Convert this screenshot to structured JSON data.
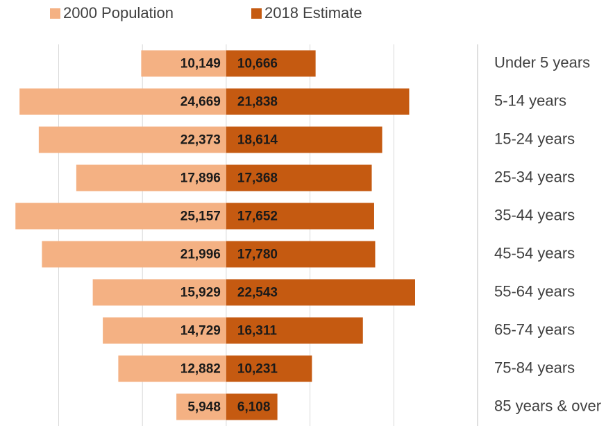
{
  "chart_data": {
    "type": "pyramid",
    "categories": [
      "Under 5 years",
      "5-14 years",
      "15-24 years",
      "25-34 years",
      "35-44 years",
      "45-54 years",
      "55-64 years",
      "65-74 years",
      "75-84 years",
      "85 years & over"
    ],
    "series": [
      {
        "name": "2000 Population",
        "color": "#f4b183",
        "side": "left",
        "values": [
          10149,
          24669,
          22373,
          17896,
          25157,
          21996,
          15929,
          14729,
          12882,
          5948
        ],
        "value_labels": [
          "10,149",
          "24,669",
          "22,373",
          "17,896",
          "25,157",
          "21,996",
          "15,929",
          "14,729",
          "12,882",
          "5,948"
        ]
      },
      {
        "name": "2018 Estimate",
        "color": "#c55a11",
        "side": "right",
        "values": [
          10666,
          21838,
          18614,
          17368,
          17652,
          17780,
          22543,
          16311,
          10231,
          6108
        ],
        "value_labels": [
          "10,666",
          "21,838",
          "18,614",
          "17,368",
          "17,652",
          "17,780",
          "22,543",
          "16,311",
          "10,231",
          "6,108"
        ]
      }
    ],
    "xlim": [
      -27000,
      30000
    ],
    "xticks": [
      -20000,
      -10000,
      0,
      10000,
      20000
    ],
    "grid": true,
    "legend": "top"
  }
}
